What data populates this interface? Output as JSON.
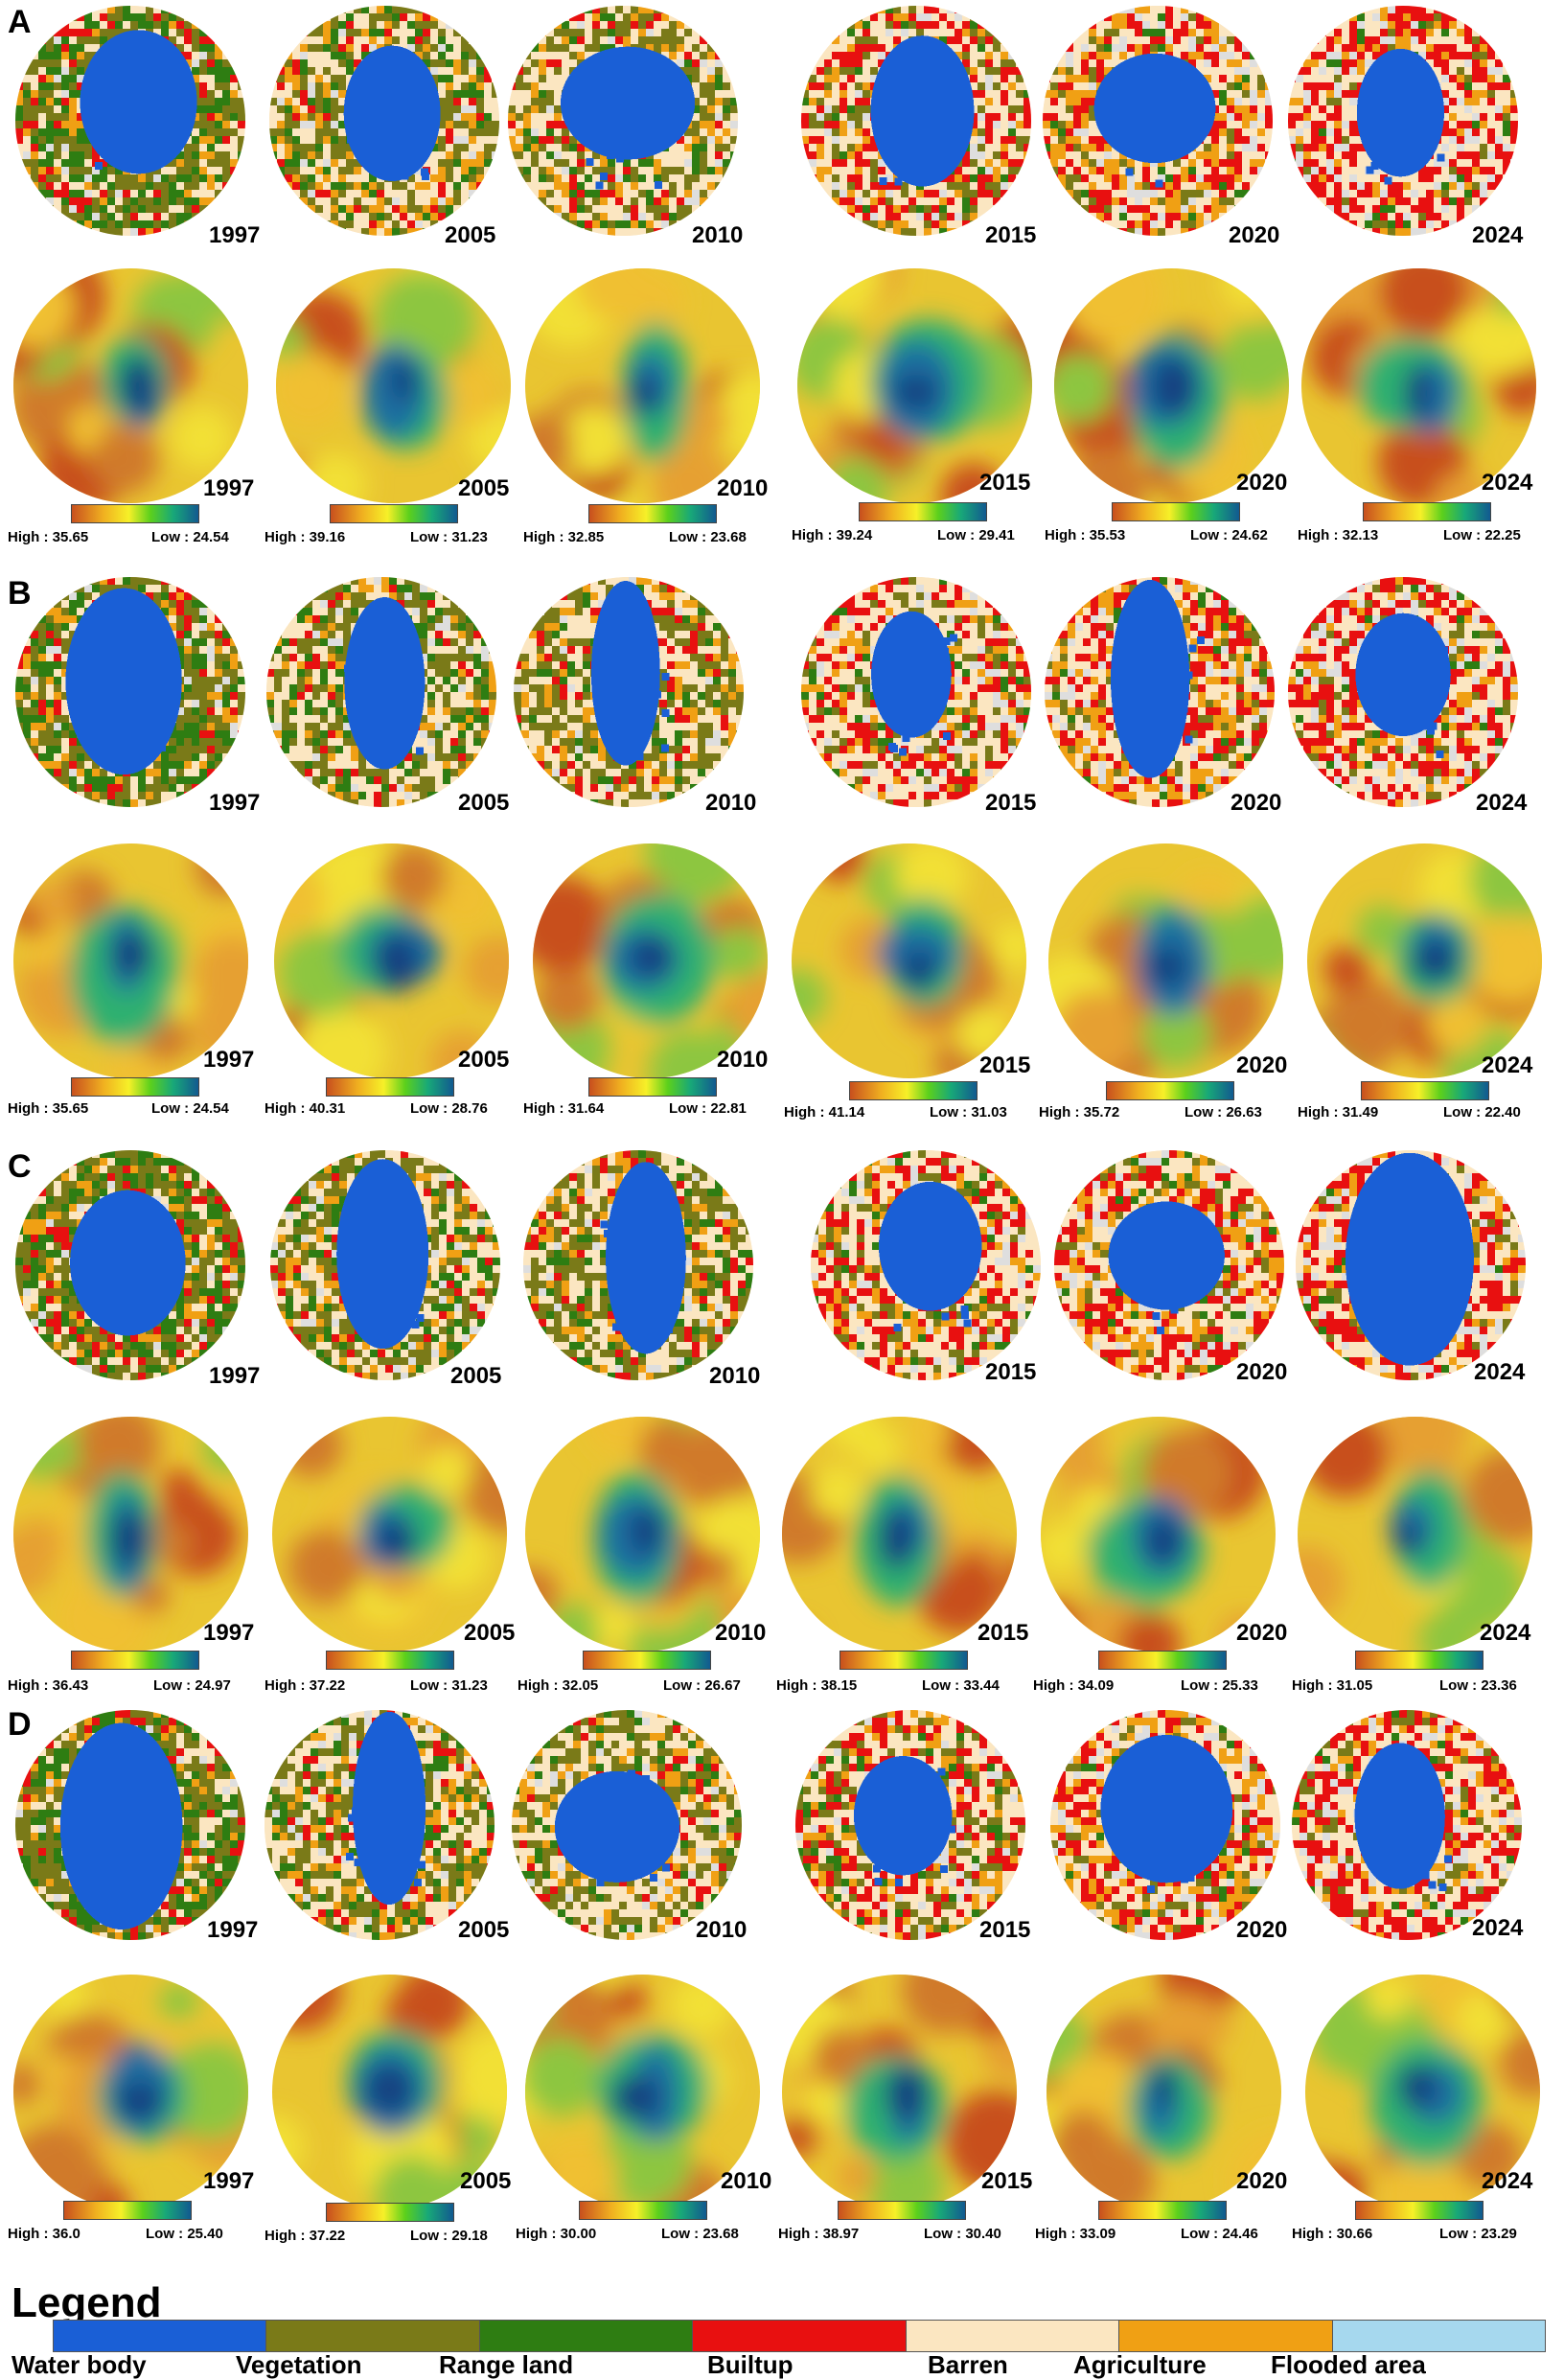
{
  "palette": {
    "water": "#1a5fd6",
    "vegetation": "#7a7a18",
    "rangeland": "#2e7d12",
    "builtup": "#e81010",
    "barren": "#fbe6c1",
    "agriculture": "#f0a014",
    "flooded": "#a6d8ee",
    "bare_grey": "#dedede"
  },
  "panels": [
    {
      "letter": "A",
      "lulc_years": [
        "1997",
        "2005",
        "2010",
        "2015",
        "2020",
        "2024"
      ],
      "lst_years": [
        "1997",
        "2005",
        "2010",
        "2015",
        "2020",
        "2024"
      ],
      "lst_ranges": [
        {
          "high": "High : 35.65",
          "low": "Low : 24.54"
        },
        {
          "high": "High : 39.16",
          "low": "Low : 31.23"
        },
        {
          "high": "High : 32.85",
          "low": "Low : 23.68"
        },
        {
          "high": "High : 39.24",
          "low": "Low : 29.41"
        },
        {
          "high": "High : 35.53",
          "low": "Low : 24.62"
        },
        {
          "high": "High : 32.13",
          "low": "Low : 22.25"
        }
      ]
    },
    {
      "letter": "B",
      "lulc_years": [
        "1997",
        "2005",
        "2010",
        "2015",
        "2020",
        "2024"
      ],
      "lst_years": [
        "1997",
        "2005",
        "2010",
        "2015",
        "2020",
        "2024"
      ],
      "lst_ranges": [
        {
          "high": "High : 35.65",
          "low": "Low : 24.54"
        },
        {
          "high": "High : 40.31",
          "low": "Low : 28.76"
        },
        {
          "high": "High : 31.64",
          "low": "Low : 22.81"
        },
        {
          "high": "High : 41.14",
          "low": "Low : 31.03"
        },
        {
          "high": "High : 35.72",
          "low": "Low : 26.63"
        },
        {
          "high": "High : 31.49",
          "low": "Low : 22.40"
        }
      ]
    },
    {
      "letter": "C",
      "lulc_years": [
        "1997",
        "2005",
        "2010",
        "2015",
        "2020",
        "2024"
      ],
      "lst_years": [
        "1997",
        "2005",
        "2010",
        "2015",
        "2020",
        "2024"
      ],
      "lst_ranges": [
        {
          "high": "High : 36.43",
          "low": "Low : 24.97"
        },
        {
          "high": "High : 37.22",
          "low": "Low : 31.23"
        },
        {
          "high": "High : 32.05",
          "low": "Low : 26.67"
        },
        {
          "high": "High : 38.15",
          "low": "Low : 33.44"
        },
        {
          "high": "High : 34.09",
          "low": "Low : 25.33"
        },
        {
          "high": "High : 31.05",
          "low": "Low : 23.36"
        }
      ]
    },
    {
      "letter": "D",
      "lulc_years": [
        "1997",
        "2005",
        "2010",
        "2015",
        "2020",
        "2024"
      ],
      "lst_years": [
        "1997",
        "2005",
        "2010",
        "2015",
        "2020",
        "2024"
      ],
      "lst_ranges": [
        {
          "high": "High : 36.0",
          "low": "Low : 25.40"
        },
        {
          "high": "High : 37.22",
          "low": "Low : 29.18"
        },
        {
          "high": "High : 30.00",
          "low": "Low : 23.68"
        },
        {
          "high": "High : 38.97",
          "low": "Low : 30.40"
        },
        {
          "high": "High : 33.09",
          "low": "Low : 24.46"
        },
        {
          "high": "High : 30.66",
          "low": "Low : 23.29"
        }
      ]
    }
  ],
  "legend": {
    "title": "Legend",
    "items": [
      {
        "label": "Water body",
        "color": "#1a5fd6"
      },
      {
        "label": "Vegetation",
        "color": "#7a7a18"
      },
      {
        "label": "Range land",
        "color": "#2e7d12"
      },
      {
        "label": "Builtup",
        "color": "#e81010"
      },
      {
        "label": "Barren",
        "color": "#fbe6c1"
      },
      {
        "label": "Agriculture",
        "color": "#f0a014"
      },
      {
        "label": "Flooded area",
        "color": "#a6d8ee"
      }
    ]
  }
}
